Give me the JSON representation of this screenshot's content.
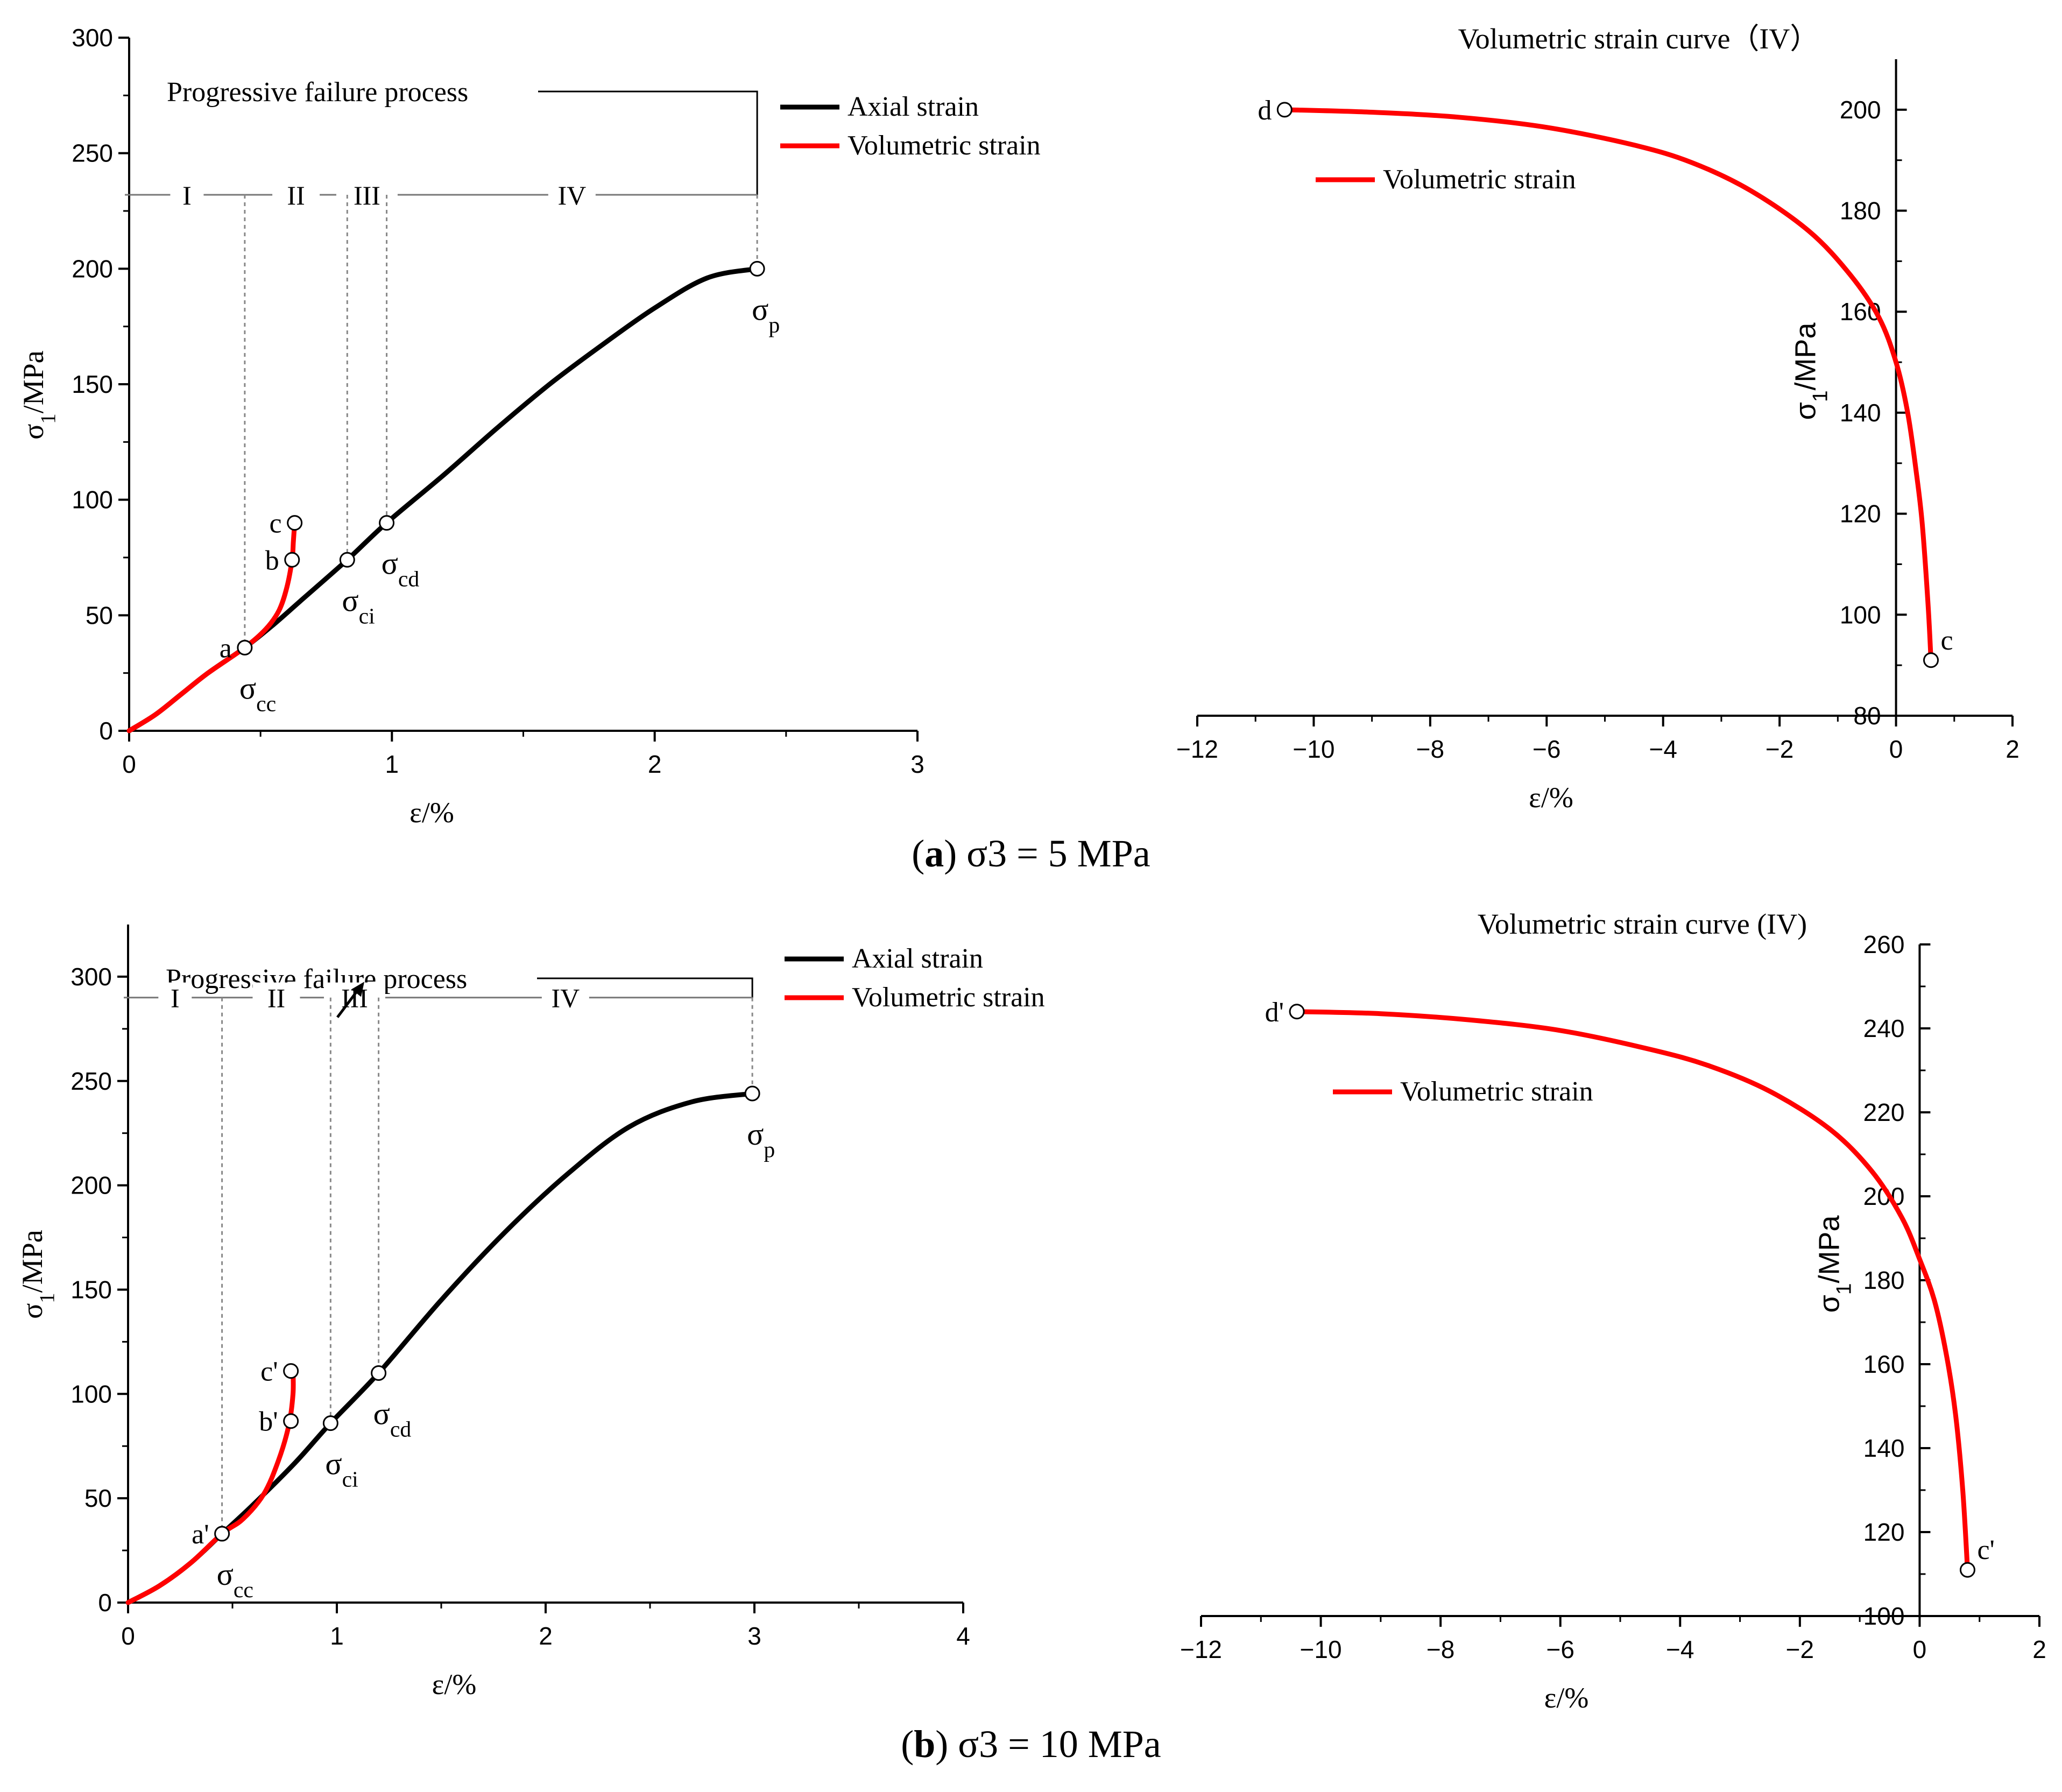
{
  "captions": [
    {
      "letter": "a",
      "open": "(",
      "close": ")",
      "text": "σ3 = 5 MPa"
    },
    {
      "letter": "b",
      "open": "(",
      "close": ")",
      "text": "σ3 = 10 MPa"
    }
  ],
  "chart_data": [
    {
      "id": "a-left",
      "type": "line",
      "xlabel": "ε/%",
      "ylabel": "σ1/MPa",
      "xlim": [
        0,
        3
      ],
      "ylim": [
        0,
        300
      ],
      "xticks": [
        0,
        1,
        2,
        3
      ],
      "yticks": [
        0,
        50,
        100,
        150,
        200,
        250,
        300
      ],
      "grid": false,
      "legend": {
        "placement": "top-right",
        "entries": [
          {
            "name": "Axial strain",
            "color": "#000000"
          },
          {
            "name": "Volumetric strain",
            "color": "#ff0000"
          }
        ]
      },
      "process_label": "Progressive failure process",
      "stages": {
        "y": 232,
        "boundaries": [
          0,
          0.44,
          0.83,
          0.98,
          2.39
        ],
        "labels": [
          "I",
          "II",
          "III",
          "IV"
        ]
      },
      "series": [
        {
          "name": "Axial strain",
          "color": "#000000",
          "x": [
            0,
            0.1,
            0.2,
            0.3,
            0.44,
            0.55,
            0.65,
            0.83,
            0.98,
            1.2,
            1.4,
            1.6,
            1.8,
            2.0,
            2.2,
            2.39
          ],
          "y": [
            0,
            7,
            16,
            25,
            36,
            46,
            56,
            74,
            90,
            111,
            131,
            150,
            167,
            183,
            196,
            200
          ]
        },
        {
          "name": "Volumetric strain",
          "color": "#ff0000",
          "x": [
            0,
            0.1,
            0.2,
            0.3,
            0.44,
            0.52,
            0.57,
            0.6,
            0.62,
            0.625,
            0.63
          ],
          "y": [
            0,
            7,
            16,
            25,
            36,
            44,
            52,
            62,
            74,
            82,
            90
          ]
        }
      ],
      "markers": [
        {
          "x": 0.44,
          "y": 36,
          "label": "a",
          "sub": "σcc"
        },
        {
          "x": 0.62,
          "y": 74,
          "label": "b",
          "sub": ""
        },
        {
          "x": 0.63,
          "y": 90,
          "label": "c",
          "sub": ""
        },
        {
          "x": 0.83,
          "y": 74,
          "label": "",
          "sub": "σci"
        },
        {
          "x": 0.98,
          "y": 90,
          "label": "",
          "sub": "σcd"
        },
        {
          "x": 2.39,
          "y": 200,
          "label": "",
          "sub": "σp"
        }
      ]
    },
    {
      "id": "a-right",
      "type": "line",
      "title": "Volumetric strain curve（IV）",
      "xlabel": "ε/%",
      "ylabel": "σ1/MPa",
      "xlim": [
        -12,
        2
      ],
      "ylim": [
        80,
        210
      ],
      "xticks": [
        -12,
        -10,
        -8,
        -6,
        -4,
        -2,
        0,
        2
      ],
      "yticks": [
        80,
        100,
        120,
        140,
        160,
        180,
        200
      ],
      "grid": false,
      "legend": {
        "placement": "top-left",
        "entries": [
          {
            "name": "Volumetric strain",
            "color": "#ff0000"
          }
        ]
      },
      "series": [
        {
          "name": "Volumetric strain",
          "color": "#ff0000",
          "x": [
            -10.5,
            -9,
            -7.5,
            -6,
            -4.5,
            -3.5,
            -2.5,
            -1.5,
            -0.8,
            -0.3,
            0,
            0.2,
            0.35,
            0.45,
            0.55,
            0.6
          ],
          "y": [
            200,
            199.5,
            198.5,
            196.5,
            193,
            189.5,
            184,
            176,
            167.5,
            159,
            150,
            140,
            128,
            118,
            102,
            91
          ]
        }
      ],
      "markers": [
        {
          "x": -10.5,
          "y": 200,
          "label": "d",
          "sub": ""
        },
        {
          "x": 0.6,
          "y": 91,
          "label": "c",
          "sub": ""
        }
      ]
    },
    {
      "id": "b-left",
      "type": "line",
      "xlabel": "ε/%",
      "ylabel": "σ1/MPa",
      "xlim": [
        0,
        4
      ],
      "ylim": [
        0,
        325
      ],
      "xticks": [
        0,
        1,
        2,
        3,
        4
      ],
      "yticks": [
        0,
        50,
        100,
        150,
        200,
        250,
        300
      ],
      "grid": false,
      "legend": {
        "placement": "top-right",
        "entries": [
          {
            "name": "Axial strain",
            "color": "#000000"
          },
          {
            "name": "Volumetric strain",
            "color": "#ff0000"
          }
        ]
      },
      "process_label": "Progressive failure process",
      "stages": {
        "y": 290,
        "boundaries": [
          0,
          0.45,
          0.97,
          1.2,
          2.99
        ],
        "labels": [
          "I",
          "II",
          "III",
          "IV"
        ]
      },
      "series": [
        {
          "name": "Axial strain",
          "color": "#000000",
          "x": [
            0,
            0.15,
            0.3,
            0.45,
            0.6,
            0.8,
            0.97,
            1.2,
            1.5,
            1.8,
            2.1,
            2.4,
            2.7,
            2.99
          ],
          "y": [
            0,
            8,
            19,
            33,
            47,
            67,
            86,
            110,
            145,
            177,
            205,
            228,
            240,
            244
          ]
        },
        {
          "name": "Volumetric strain",
          "color": "#ff0000",
          "x": [
            0,
            0.15,
            0.3,
            0.45,
            0.55,
            0.65,
            0.72,
            0.77,
            0.79,
            0.79
          ],
          "y": [
            0,
            8,
            19,
            33,
            40,
            52,
            68,
            85,
            100,
            111
          ]
        }
      ],
      "markers": [
        {
          "x": 0.45,
          "y": 33,
          "label": "a'",
          "sub": "σcc"
        },
        {
          "x": 0.78,
          "y": 87,
          "label": "b'",
          "sub": ""
        },
        {
          "x": 0.78,
          "y": 111,
          "label": "c'",
          "sub": ""
        },
        {
          "x": 0.97,
          "y": 86,
          "label": "",
          "sub": "σci"
        },
        {
          "x": 1.2,
          "y": 110,
          "label": "",
          "sub": "σcd"
        },
        {
          "x": 2.99,
          "y": 244,
          "label": "",
          "sub": "σp"
        }
      ]
    },
    {
      "id": "b-right",
      "type": "line",
      "title": "Volumetric strain curve (IV)",
      "xlabel": "ε/%",
      "ylabel": "σ1/MPa",
      "xlim": [
        -12,
        2
      ],
      "ylim": [
        100,
        260
      ],
      "xticks": [
        -12,
        -10,
        -8,
        -6,
        -4,
        -2,
        0,
        2
      ],
      "yticks": [
        100,
        120,
        140,
        160,
        180,
        200,
        220,
        240,
        260
      ],
      "grid": false,
      "legend": {
        "placement": "top-left",
        "entries": [
          {
            "name": "Volumetric strain",
            "color": "#ff0000"
          }
        ]
      },
      "series": [
        {
          "name": "Volumetric strain",
          "color": "#ff0000",
          "x": [
            -10.4,
            -9,
            -7.5,
            -6,
            -4.5,
            -3.5,
            -2.5,
            -1.5,
            -0.8,
            -0.3,
            0,
            0.25,
            0.45,
            0.6,
            0.72,
            0.8
          ],
          "y": [
            244,
            243.5,
            242,
            239.5,
            235,
            231,
            225,
            216,
            206,
            195,
            185,
            175,
            162,
            148,
            130,
            111
          ]
        }
      ],
      "markers": [
        {
          "x": -10.4,
          "y": 244,
          "label": "d'",
          "sub": ""
        },
        {
          "x": 0.8,
          "y": 111,
          "label": "c'",
          "sub": ""
        }
      ]
    }
  ]
}
